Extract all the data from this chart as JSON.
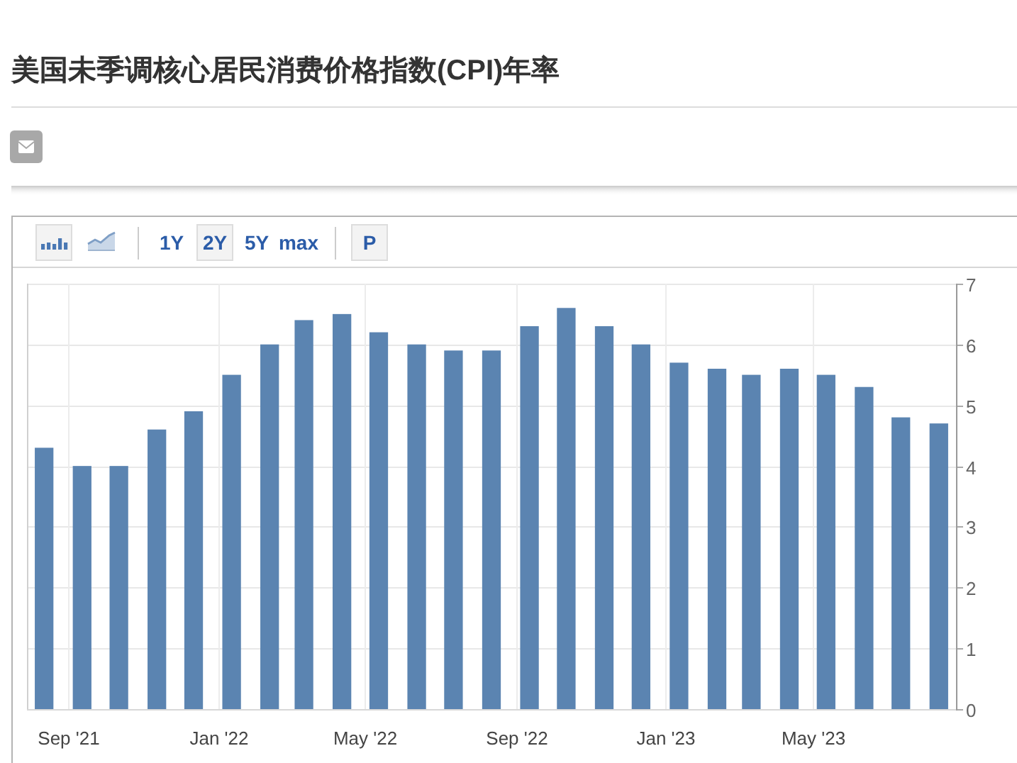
{
  "chart_data": {
    "type": "bar",
    "title": "美国未季调核心居民消费价格指数(CPI)年率",
    "x": [
      "2021-08-12",
      "2021-09-12",
      "2021-10-12",
      "2021-11-12",
      "2021-12-12",
      "2022-01-12",
      "2022-02-12",
      "2022-03-12",
      "2022-04-12",
      "2022-05-12",
      "2022-06-12",
      "2022-07-12",
      "2022-08-12",
      "2022-09-12",
      "2022-10-12",
      "2022-11-12",
      "2022-12-12",
      "2023-01-12",
      "2023-02-12",
      "2023-03-12",
      "2023-04-12",
      "2023-05-12",
      "2023-06-12",
      "2023-07-12",
      "2023-08-12"
    ],
    "values": [
      4.3,
      4.0,
      4.0,
      4.6,
      4.9,
      5.5,
      6.0,
      6.4,
      6.5,
      6.2,
      6.0,
      5.9,
      5.9,
      6.3,
      6.6,
      6.3,
      6.0,
      5.7,
      5.6,
      5.5,
      5.6,
      5.5,
      5.3,
      4.8,
      4.7
    ],
    "color": "#5b84b1",
    "xlim": [
      "2021-07-29",
      "2023-08-26"
    ],
    "xticks": [
      {
        "value": "2021-09-01",
        "label": "Sep '21"
      },
      {
        "value": "2022-01-01",
        "label": "Jan '22"
      },
      {
        "value": "2022-05-01",
        "label": "May '22"
      },
      {
        "value": "2022-09-01",
        "label": "Sep '22"
      },
      {
        "value": "2023-01-01",
        "label": "Jan '23"
      },
      {
        "value": "2023-05-01",
        "label": "May '23"
      }
    ],
    "ylim": [
      0,
      7
    ],
    "yticks": [
      0,
      1,
      2,
      3,
      4,
      5,
      6,
      7
    ],
    "grid": true,
    "annotations": [
      "1Y",
      "2Y",
      "5Y",
      "max",
      "P"
    ]
  }
}
